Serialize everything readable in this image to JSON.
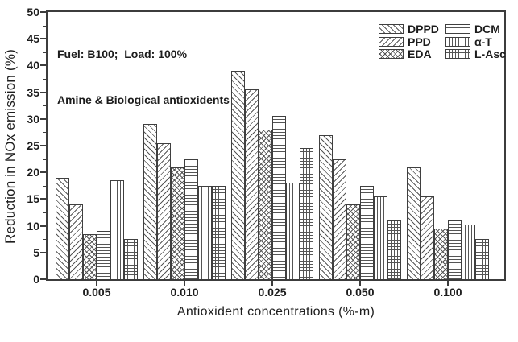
{
  "figure": {
    "annotation": {
      "line1": "Fuel: B100;  Load: 100%",
      "line2": "Amine & Biological antioxidents"
    }
  },
  "chart_data": {
    "type": "bar",
    "title": "",
    "xlabel": "Antioxident concentrations (%-m)",
    "ylabel": "Reduction in NOx emission (%)",
    "categories": [
      "0.005",
      "0.010",
      "0.025",
      "0.050",
      "0.100"
    ],
    "series": [
      {
        "name": "DPPD",
        "hatch": "diagonal-forward",
        "values": [
          19,
          29,
          39,
          27,
          21
        ]
      },
      {
        "name": "PPD",
        "hatch": "diagonal-backward",
        "values": [
          14,
          25.5,
          35.5,
          22.5,
          15.5
        ]
      },
      {
        "name": "EDA",
        "hatch": "diagonal-cross",
        "values": [
          8.5,
          21,
          28,
          14,
          9.5
        ]
      },
      {
        "name": "DCM",
        "hatch": "horizontal",
        "values": [
          9,
          22.5,
          30.5,
          17.5,
          11
        ]
      },
      {
        "name": "α-T",
        "hatch": "vertical",
        "values": [
          18.5,
          17.5,
          18,
          15.5,
          10.25
        ]
      },
      {
        "name": "L-Asc",
        "hatch": "grid",
        "values": [
          7.5,
          17.5,
          24.5,
          11,
          7.5
        ]
      }
    ],
    "ylim": [
      0,
      50
    ],
    "yticks": [
      0,
      5,
      10,
      15,
      20,
      25,
      30,
      35,
      40,
      45,
      50
    ],
    "y_minor_step": 2.5,
    "grid": false,
    "legend_position": "top-right",
    "legend_columns": [
      [
        "DPPD",
        "PPD",
        "EDA"
      ],
      [
        "DCM",
        "α-T",
        "L-Asc"
      ]
    ],
    "colors": {
      "ink": "#3c3c3c",
      "background": "#ffffff"
    }
  }
}
